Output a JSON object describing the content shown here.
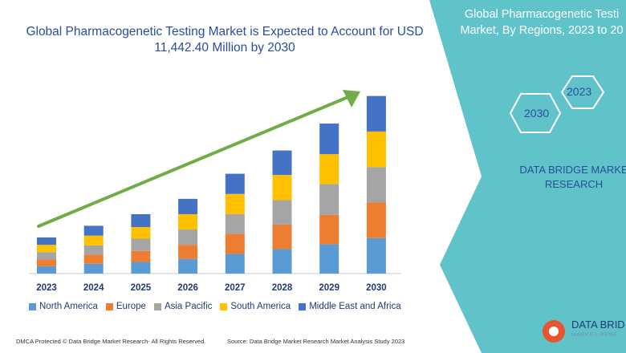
{
  "header": {
    "title": "Global Pharmacogenetic Testing Market is Expected to Account for USD 11,442.40 Million by 2030"
  },
  "panel": {
    "title_line1": "Global Pharmacogenetic Testi",
    "title_line2": "Market, By Regions, 2023 to 20",
    "hex_labels": [
      "2023",
      "2030"
    ],
    "brand_line1": "DATA BRIDGE MARKE",
    "brand_line2": "RESEARCH",
    "background_color": "#5fc3c9"
  },
  "footer": {
    "dmca": "DMCA Protected © Data Bridge Market Research- All Rights Reserved.",
    "source": "Source: Data Bridge Market Research Market Analysis Study 2023"
  },
  "logo": {
    "name": "DATA BRID",
    "tagline": "MARKET RESE"
  },
  "chart_data": {
    "type": "bar",
    "stacked": true,
    "categories": [
      "2023",
      "2024",
      "2025",
      "2026",
      "2027",
      "2028",
      "2029",
      "2030"
    ],
    "series": [
      {
        "name": "North America",
        "color": "#5b9bd5",
        "values": [
          12,
          16,
          19,
          24,
          32,
          40,
          48,
          58
        ]
      },
      {
        "name": "Europe",
        "color": "#ed7d31",
        "values": [
          11,
          15,
          18,
          23,
          33,
          40,
          48,
          58
        ]
      },
      {
        "name": "Asia Pacific",
        "color": "#a5a5a5",
        "values": [
          12,
          15,
          20,
          25,
          32,
          40,
          50,
          58
        ]
      },
      {
        "name": "South America",
        "color": "#ffc000",
        "values": [
          12,
          16,
          19,
          25,
          33,
          41,
          49,
          58
        ]
      },
      {
        "name": "Middle East and Africa",
        "color": "#4472c4",
        "values": [
          12,
          16,
          21,
          25,
          33,
          40,
          50,
          58
        ]
      }
    ],
    "ylim": [
      0,
      300
    ],
    "trend_arrow_color": "#70ad47",
    "legend_position": "bottom",
    "grid": false
  }
}
